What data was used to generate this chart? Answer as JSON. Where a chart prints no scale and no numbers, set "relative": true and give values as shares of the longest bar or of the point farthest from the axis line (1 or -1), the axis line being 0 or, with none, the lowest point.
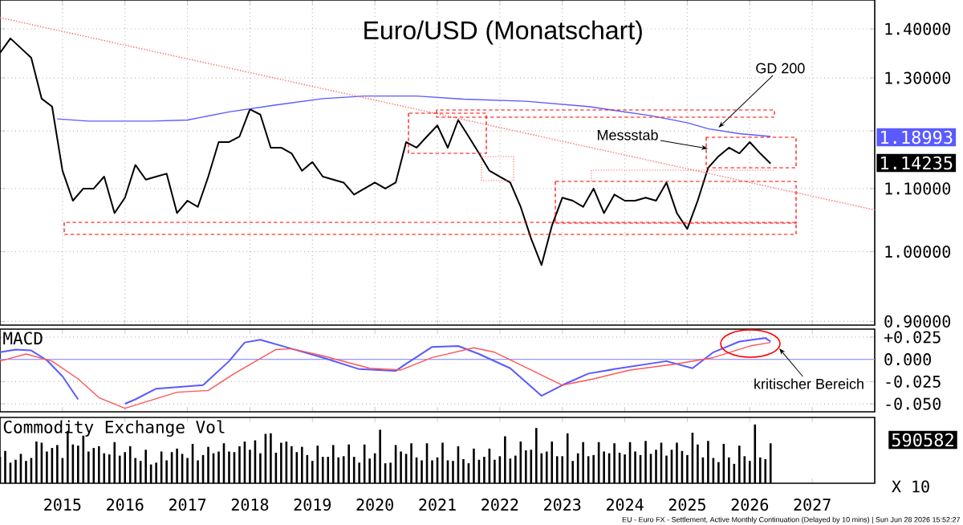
{
  "chart_data": [
    {
      "type": "line",
      "title": "Euro/USD (Monatschart)",
      "log": "y",
      "grid": true,
      "tick_labels": "y",
      "xlim": [
        "2014-01",
        "2028-01"
      ],
      "xticks": [
        {
          "value": "2015-01",
          "label": null
        },
        {
          "value": "2016-01",
          "label": null
        },
        {
          "value": "2017-01",
          "label": null
        },
        {
          "value": "2018-01",
          "label": null
        },
        {
          "value": "2019-01",
          "label": null
        },
        {
          "value": "2020-01",
          "label": null
        },
        {
          "value": "2021-01",
          "label": null
        },
        {
          "value": "2022-01",
          "label": null
        },
        {
          "value": "2023-01",
          "label": null
        },
        {
          "value": "2024-01",
          "label": null
        },
        {
          "value": "2025-01",
          "label": null
        },
        {
          "value": "2026-01",
          "label": null
        },
        {
          "value": "2027-01",
          "label": null
        }
      ],
      "ylim": [
        0.895,
        1.4625
      ],
      "yticks": [
        {
          "value": 0.9,
          "label": "0.90000"
        },
        {
          "value": 1.0,
          "label": "1.00000"
        },
        {
          "value": 1.1,
          "label": "1.10000"
        },
        {
          "value": 1.2,
          "label": null
        },
        {
          "value": 1.3,
          "label": "1.30000"
        },
        {
          "value": 1.4,
          "label": "1.40000"
        }
      ],
      "annotations": [
        {
          "text": "GD 200",
          "x": "2025-07",
          "y": 1.206
        },
        "Messstab",
        "1.18993",
        "1.14235"
      ],
      "series": [
        {
          "color": "#000000",
          "x": [
            "2014-01",
            "2014-03",
            "2014-05",
            "2014-07",
            "2014-09",
            "2014-11",
            "2015-01",
            "2015-03",
            "2015-05",
            "2015-07",
            "2015-09",
            "2015-11",
            "2016-01",
            "2016-03",
            "2016-05",
            "2016-07",
            "2016-09",
            "2016-11",
            "2017-01",
            "2017-03",
            "2017-05",
            "2017-07",
            "2017-09",
            "2017-11",
            "2018-01",
            "2018-03",
            "2018-05",
            "2018-07",
            "2018-09",
            "2018-11",
            "2019-01",
            "2019-03",
            "2019-05",
            "2019-07",
            "2019-09",
            "2019-11",
            "2020-01",
            "2020-03",
            "2020-05",
            "2020-07",
            "2020-09",
            "2020-11",
            "2021-01",
            "2021-03",
            "2021-05",
            "2021-07",
            "2021-09",
            "2021-11",
            "2022-01",
            "2022-03",
            "2022-05",
            "2022-07",
            "2022-09",
            "2022-11",
            "2023-01",
            "2023-03",
            "2023-05",
            "2023-07",
            "2023-09",
            "2023-11",
            "2024-01",
            "2024-03",
            "2024-05",
            "2024-07",
            "2024-09",
            "2024-11",
            "2025-01",
            "2025-03",
            "2025-05",
            "2025-07",
            "2025-09",
            "2025-11",
            "2026-01",
            "2026-03",
            "2026-05"
          ],
          "values": [
            1.35,
            1.38,
            1.36,
            1.34,
            1.26,
            1.245,
            1.13,
            1.08,
            1.1,
            1.1,
            1.12,
            1.06,
            1.085,
            1.14,
            1.115,
            1.12,
            1.125,
            1.06,
            1.08,
            1.07,
            1.12,
            1.18,
            1.18,
            1.19,
            1.24,
            1.23,
            1.17,
            1.17,
            1.16,
            1.13,
            1.145,
            1.12,
            1.115,
            1.11,
            1.09,
            1.1,
            1.11,
            1.1,
            1.11,
            1.18,
            1.17,
            1.19,
            1.21,
            1.17,
            1.22,
            1.19,
            1.16,
            1.13,
            1.12,
            1.11,
            1.07,
            1.02,
            0.98,
            1.04,
            1.085,
            1.08,
            1.07,
            1.1,
            1.06,
            1.09,
            1.08,
            1.08,
            1.085,
            1.08,
            1.11,
            1.06,
            1.035,
            1.08,
            1.135,
            1.155,
            1.17,
            1.16,
            1.18,
            1.16,
            1.14235
          ]
        },
        {
          "color": "#5a5aff",
          "x": [
            "2014-12",
            "2015-06",
            "2016-06",
            "2017-01",
            "2017-09",
            "2018-06",
            "2019-03",
            "2019-11",
            "2020-09",
            "2021-06",
            "2022-06",
            "2023-06",
            "2024-06",
            "2025-01",
            "2025-05",
            "2025-11",
            "2026-05"
          ],
          "values": [
            1.222,
            1.218,
            1.218,
            1.22,
            1.235,
            1.248,
            1.26,
            1.265,
            1.265,
            1.259,
            1.255,
            1.245,
            1.228,
            1.215,
            1.204,
            1.195,
            1.18993
          ]
        },
        {
          "color": "#ff6666",
          "line_style": "dotted",
          "x": [
            "2014-01",
            "2028-01"
          ],
          "values": [
            1.424,
            1.065
          ]
        }
      ]
    },
    {
      "type": "line",
      "title": "MACD",
      "grid": "y",
      "tick_labels": "y",
      "xlim": [
        "2014-01",
        "2028-01"
      ],
      "xticks": [
        {
          "value": "2015-01",
          "label": null
        },
        {
          "value": "2016-01",
          "label": null
        },
        {
          "value": "2017-01",
          "label": null
        },
        {
          "value": "2018-01",
          "label": null
        },
        {
          "value": "2019-01",
          "label": null
        },
        {
          "value": "2020-01",
          "label": null
        },
        {
          "value": "2021-01",
          "label": null
        },
        {
          "value": "2022-01",
          "label": null
        },
        {
          "value": "2023-01",
          "label": null
        },
        {
          "value": "2024-01",
          "label": null
        },
        {
          "value": "2025-01",
          "label": null
        },
        {
          "value": "2026-01",
          "label": null
        },
        {
          "value": "2027-01",
          "label": null
        }
      ],
      "ylim": [
        -0.059,
        0.034
      ],
      "yticks": [
        {
          "value": -0.05,
          "label": "-0.050"
        },
        {
          "value": -0.025,
          "label": "-0.025"
        },
        {
          "value": 0,
          "label": "0.000"
        },
        {
          "value": 0.025,
          "label": "+0.025"
        }
      ],
      "ref_lines": [
        {
          "axis": "y",
          "value": 0,
          "color": "#9999ff"
        }
      ],
      "annotations": [
        "kritischer Bereich"
      ],
      "series": [
        {
          "color": "#5a5aff",
          "x": [
            "2014-01",
            "2014-04",
            "2014-07",
            "2014-10",
            "2015-01",
            "2015-04",
            "2015-08",
            "2016-01",
            "2016-03",
            "2016-07",
            "2017-04",
            "2017-09",
            "2017-12",
            "2018-03",
            "2018-09",
            "2019-03",
            "2019-10",
            "2020-05",
            "2020-07",
            "2020-12",
            "2021-05",
            "2021-09",
            "2022-03",
            "2022-09",
            "2023-01",
            "2023-06",
            "2023-11",
            "2024-09",
            "2025-02",
            "2025-06",
            "2025-11",
            "2026-04",
            "2026-05"
          ],
          "values": [
            0.008,
            0.011,
            0.01,
            -0.001,
            -0.019,
            -0.045,
            null,
            -0.05,
            -0.045,
            -0.033,
            -0.029,
            -0.002,
            0.019,
            0.022,
            0.012,
            0.002,
            -0.011,
            -0.013,
            -0.005,
            0.014,
            0.015,
            0.006,
            -0.01,
            -0.041,
            -0.029,
            -0.016,
            -0.011,
            -0.002,
            -0.01,
            0.008,
            0.02,
            0.024,
            0.02
          ]
        },
        {
          "color": "#ff5555",
          "x": [
            "2014-01",
            "2014-06",
            "2014-11",
            "2015-04",
            "2015-08",
            "2016-01",
            "2016-06",
            "2016-11",
            "2017-05",
            "2017-10",
            "2018-06",
            "2018-09",
            "2019-03",
            "2019-12",
            "2020-06",
            "2020-12",
            "2021-08",
            "2021-12",
            "2022-07",
            "2023-01",
            "2023-07",
            "2024-02",
            "2024-11",
            "2025-06",
            "2026-01",
            "2026-05"
          ],
          "values": [
            -0.002,
            0.006,
            -0.002,
            -0.022,
            -0.043,
            -0.055,
            -0.046,
            -0.037,
            -0.035,
            -0.016,
            0.011,
            0.012,
            0.004,
            -0.01,
            -0.012,
            0.002,
            0.013,
            0.008,
            -0.012,
            -0.029,
            -0.022,
            -0.012,
            -0.005,
            0.002,
            0.015,
            0.019
          ]
        }
      ]
    },
    {
      "type": "bar",
      "title": "Commodity Exchange Vol",
      "relative": true,
      "tick_labels": "x",
      "xlim": [
        "2014-01",
        "2028-01"
      ],
      "xticks": [
        {
          "value": "2015-01",
          "label": "2015"
        },
        {
          "value": "2016-01",
          "label": "2016"
        },
        {
          "value": "2017-01",
          "label": "2017"
        },
        {
          "value": "2018-01",
          "label": "2018"
        },
        {
          "value": "2019-01",
          "label": "2019"
        },
        {
          "value": "2020-01",
          "label": "2020"
        },
        {
          "value": "2021-01",
          "label": "2021"
        },
        {
          "value": "2022-01",
          "label": "2022"
        },
        {
          "value": "2023-01",
          "label": "2023"
        },
        {
          "value": "2024-01",
          "label": "2024"
        },
        {
          "value": "2025-01",
          "label": "2025"
        },
        {
          "value": "2026-01",
          "label": "2026"
        },
        {
          "value": "2027-01",
          "label": "2027"
        }
      ],
      "annotations": [
        "590582",
        "X 10",
        "EU - Euro FX - Settlement, Active Monthly Continuation (Delayed by 10 mins) | Sun Jun 28 2026 15:52:27"
      ],
      "series": [
        {
          "color": "#000000",
          "x": [
            "2014-01",
            "2014-02",
            "2014-03",
            "2014-04",
            "2014-05",
            "2014-06",
            "2014-07",
            "2014-08",
            "2014-09",
            "2014-10",
            "2014-11",
            "2014-12",
            "2015-01",
            "2015-02",
            "2015-03",
            "2015-04",
            "2015-05",
            "2015-06",
            "2015-07",
            "2015-08",
            "2015-09",
            "2015-10",
            "2015-11",
            "2015-12",
            "2016-01",
            "2016-02",
            "2016-03",
            "2016-04",
            "2016-05",
            "2016-06",
            "2016-07",
            "2016-08",
            "2016-09",
            "2016-10",
            "2016-11",
            "2016-12",
            "2017-01",
            "2017-02",
            "2017-03",
            "2017-04",
            "2017-05",
            "2017-06",
            "2017-07",
            "2017-08",
            "2017-09",
            "2017-10",
            "2017-11",
            "2017-12",
            "2018-01",
            "2018-02",
            "2018-03",
            "2018-04",
            "2018-05",
            "2018-06",
            "2018-07",
            "2018-08",
            "2018-09",
            "2018-10",
            "2018-11",
            "2018-12",
            "2019-01",
            "2019-02",
            "2019-03",
            "2019-04",
            "2019-05",
            "2019-06",
            "2019-07",
            "2019-08",
            "2019-09",
            "2019-10",
            "2019-11",
            "2019-12",
            "2020-01",
            "2020-02",
            "2020-03",
            "2020-04",
            "2020-05",
            "2020-06",
            "2020-07",
            "2020-08",
            "2020-09",
            "2020-10",
            "2020-11",
            "2020-12",
            "2021-01",
            "2021-02",
            "2021-03",
            "2021-04",
            "2021-05",
            "2021-06",
            "2021-07",
            "2021-08",
            "2021-09",
            "2021-10",
            "2021-11",
            "2021-12",
            "2022-01",
            "2022-02",
            "2022-03",
            "2022-04",
            "2022-05",
            "2022-06",
            "2022-07",
            "2022-08",
            "2022-09",
            "2022-10",
            "2022-11",
            "2022-12",
            "2023-01",
            "2023-02",
            "2023-03",
            "2023-04",
            "2023-05",
            "2023-06",
            "2023-07",
            "2023-08",
            "2023-09",
            "2023-10",
            "2023-11",
            "2023-12",
            "2024-01",
            "2024-02",
            "2024-03",
            "2024-04",
            "2024-05",
            "2024-06",
            "2024-07",
            "2024-08",
            "2024-09",
            "2024-10",
            "2024-11",
            "2024-12",
            "2025-01",
            "2025-02",
            "2025-03",
            "2025-04",
            "2025-05",
            "2025-06",
            "2025-07",
            "2025-08",
            "2025-09",
            "2025-10",
            "2025-11",
            "2025-12",
            "2026-01",
            "2026-02",
            "2026-03",
            "2026-04",
            "2026-05"
          ],
          "values": [
            0.45,
            0.55,
            0.35,
            0.4,
            0.5,
            0.38,
            0.43,
            0.71,
            0.69,
            0.54,
            0.6,
            0.65,
            0.43,
            0.89,
            0.66,
            0.64,
            0.81,
            0.54,
            0.6,
            0.63,
            0.51,
            0.49,
            0.7,
            0.47,
            0.53,
            0.63,
            0.43,
            0.38,
            0.57,
            0.32,
            0.35,
            0.54,
            0.39,
            0.53,
            0.59,
            0.5,
            0.43,
            0.67,
            0.39,
            0.48,
            0.62,
            0.51,
            0.54,
            0.68,
            0.54,
            0.53,
            0.63,
            0.71,
            0.57,
            0.73,
            0.51,
            0.84,
            0.85,
            0.52,
            0.69,
            0.71,
            0.63,
            0.53,
            0.62,
            0.48,
            0.38,
            0.64,
            0.45,
            0.45,
            0.65,
            0.44,
            0.46,
            0.66,
            0.45,
            0.35,
            0.66,
            0.42,
            0.51,
            0.91,
            0.34,
            0.35,
            0.65,
            0.54,
            0.5,
            0.68,
            0.44,
            0.39,
            0.68,
            0.39,
            0.44,
            0.69,
            0.39,
            0.38,
            0.63,
            0.41,
            0.34,
            0.59,
            0.4,
            0.45,
            0.59,
            0.4,
            0.46,
            0.8,
            0.42,
            0.47,
            0.71,
            0.56,
            0.57,
            0.94,
            0.51,
            0.54,
            0.71,
            0.46,
            0.46,
            0.85,
            0.38,
            0.51,
            0.7,
            0.46,
            0.48,
            0.7,
            0.54,
            0.51,
            0.68,
            0.52,
            0.49,
            0.7,
            0.54,
            0.48,
            0.72,
            0.5,
            0.57,
            0.69,
            0.47,
            0.57,
            0.69,
            0.55,
            0.48,
            0.86,
            0.66,
            0.44,
            0.72,
            0.43,
            0.36,
            0.67,
            0.44,
            0.33,
            0.64,
            0.46,
            0.38,
            1,
            0.44,
            0.41,
            0.68
          ]
        }
      ]
    }
  ]
}
